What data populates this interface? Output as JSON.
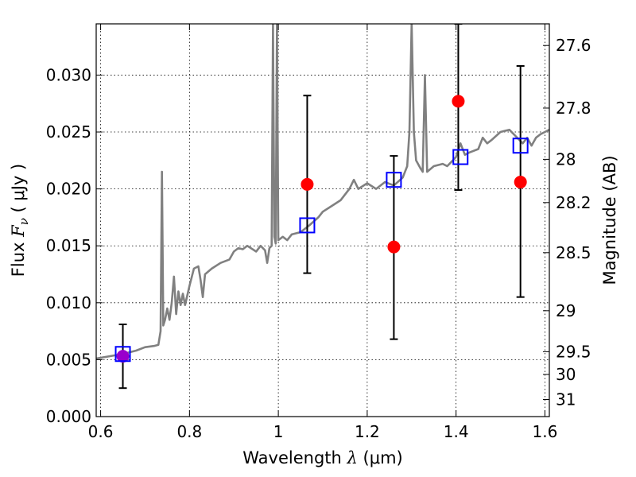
{
  "chart_data": {
    "type": "scatter",
    "xlabel_prefix": "Wavelength",
    "xlabel_symbol": "λ",
    "xlabel_unit": "(μm)",
    "ylabel_prefix": "Flux",
    "ylabel_symbol": "F",
    "ylabel_sub": "ν",
    "ylabel_unit": "( μJy )",
    "y2label": "Magnitude (AB)",
    "xlim": [
      0.59,
      1.61
    ],
    "ylim": [
      0.0,
      0.0345
    ],
    "grid": true,
    "x_ticks": [
      {
        "value": 0.6,
        "label": "0.6"
      },
      {
        "value": 0.8,
        "label": "0.8"
      },
      {
        "value": 1.0,
        "label": "1"
      },
      {
        "value": 1.2,
        "label": "1.2"
      },
      {
        "value": 1.4,
        "label": "1.4"
      },
      {
        "value": 1.6,
        "label": "1.6"
      }
    ],
    "y_ticks": [
      {
        "value": 0.0,
        "label": "0.000"
      },
      {
        "value": 0.005,
        "label": "0.005"
      },
      {
        "value": 0.01,
        "label": "0.010"
      },
      {
        "value": 0.015,
        "label": "0.015"
      },
      {
        "value": 0.02,
        "label": "0.020"
      },
      {
        "value": 0.025,
        "label": "0.025"
      },
      {
        "value": 0.03,
        "label": "0.030"
      }
    ],
    "y2_ticks": [
      {
        "flux": 0.0326,
        "label": "27.6"
      },
      {
        "flux": 0.0271,
        "label": "27.8"
      },
      {
        "flux": 0.0226,
        "label": "28"
      },
      {
        "flux": 0.0188,
        "label": "28.2"
      },
      {
        "flux": 0.0144,
        "label": "28.5"
      },
      {
        "flux": 0.0093,
        "label": "29"
      },
      {
        "flux": 0.0057,
        "label": "29.5"
      },
      {
        "flux": 0.0037,
        "label": "30"
      },
      {
        "flux": 0.0015,
        "label": "31"
      }
    ],
    "sed_model": {
      "color": "#808080",
      "points": [
        [
          0.59,
          0.0051
        ],
        [
          0.62,
          0.0053
        ],
        [
          0.65,
          0.0055
        ],
        [
          0.68,
          0.0058
        ],
        [
          0.7,
          0.0061
        ],
        [
          0.72,
          0.0062
        ],
        [
          0.73,
          0.0063
        ],
        [
          0.735,
          0.0075
        ],
        [
          0.738,
          0.0215
        ],
        [
          0.741,
          0.008
        ],
        [
          0.745,
          0.0085
        ],
        [
          0.75,
          0.0095
        ],
        [
          0.755,
          0.0085
        ],
        [
          0.76,
          0.01
        ],
        [
          0.765,
          0.0123
        ],
        [
          0.77,
          0.009
        ],
        [
          0.775,
          0.011
        ],
        [
          0.78,
          0.0098
        ],
        [
          0.785,
          0.0108
        ],
        [
          0.79,
          0.0098
        ],
        [
          0.8,
          0.0115
        ],
        [
          0.81,
          0.013
        ],
        [
          0.82,
          0.0132
        ],
        [
          0.825,
          0.012
        ],
        [
          0.83,
          0.0105
        ],
        [
          0.835,
          0.0125
        ],
        [
          0.85,
          0.013
        ],
        [
          0.87,
          0.0135
        ],
        [
          0.89,
          0.0138
        ],
        [
          0.9,
          0.0145
        ],
        [
          0.91,
          0.0148
        ],
        [
          0.92,
          0.0147
        ],
        [
          0.93,
          0.015
        ],
        [
          0.95,
          0.0145
        ],
        [
          0.96,
          0.015
        ],
        [
          0.97,
          0.0146
        ],
        [
          0.975,
          0.0135
        ],
        [
          0.98,
          0.0148
        ],
        [
          0.985,
          0.015
        ],
        [
          0.988,
          0.0345
        ],
        [
          0.991,
          0.0158
        ],
        [
          0.994,
          0.0152
        ],
        [
          0.997,
          0.0345
        ],
        [
          1.0,
          0.0155
        ],
        [
          1.01,
          0.0158
        ],
        [
          1.02,
          0.0155
        ],
        [
          1.03,
          0.016
        ],
        [
          1.05,
          0.0162
        ],
        [
          1.07,
          0.0168
        ],
        [
          1.09,
          0.0175
        ],
        [
          1.1,
          0.018
        ],
        [
          1.12,
          0.0185
        ],
        [
          1.14,
          0.019
        ],
        [
          1.15,
          0.0195
        ],
        [
          1.16,
          0.02
        ],
        [
          1.17,
          0.0208
        ],
        [
          1.18,
          0.02
        ],
        [
          1.2,
          0.0205
        ],
        [
          1.22,
          0.02
        ],
        [
          1.24,
          0.0206
        ],
        [
          1.26,
          0.0203
        ],
        [
          1.28,
          0.021
        ],
        [
          1.29,
          0.022
        ],
        [
          1.295,
          0.025
        ],
        [
          1.3,
          0.0345
        ],
        [
          1.305,
          0.025
        ],
        [
          1.31,
          0.0225
        ],
        [
          1.32,
          0.0218
        ],
        [
          1.325,
          0.0215
        ],
        [
          1.33,
          0.03
        ],
        [
          1.335,
          0.0215
        ],
        [
          1.35,
          0.022
        ],
        [
          1.37,
          0.0222
        ],
        [
          1.38,
          0.022
        ],
        [
          1.39,
          0.0224
        ],
        [
          1.4,
          0.0228
        ],
        [
          1.41,
          0.024
        ],
        [
          1.42,
          0.023
        ],
        [
          1.43,
          0.0232
        ],
        [
          1.45,
          0.0235
        ],
        [
          1.46,
          0.0245
        ],
        [
          1.47,
          0.024
        ],
        [
          1.48,
          0.0243
        ],
        [
          1.5,
          0.025
        ],
        [
          1.52,
          0.0252
        ],
        [
          1.53,
          0.0248
        ],
        [
          1.55,
          0.024
        ],
        [
          1.56,
          0.0245
        ],
        [
          1.57,
          0.0238
        ],
        [
          1.58,
          0.0245
        ],
        [
          1.59,
          0.0248
        ],
        [
          1.61,
          0.0252
        ]
      ]
    },
    "series": [
      {
        "marker": "square",
        "color": "#0000ff",
        "points": [
          {
            "x": 0.65,
            "y": 0.0055
          },
          {
            "x": 1.065,
            "y": 0.0168
          },
          {
            "x": 1.26,
            "y": 0.0208
          },
          {
            "x": 1.41,
            "y": 0.0228
          },
          {
            "x": 1.545,
            "y": 0.0238
          }
        ]
      },
      {
        "marker": "circle",
        "color": "#ff0000",
        "points": [
          {
            "x": 0.65,
            "y": 0.0053,
            "yerr_low": 0.0025,
            "yerr_high": 0.0081,
            "color": "#9900cc"
          },
          {
            "x": 1.065,
            "y": 0.0204,
            "yerr_low": 0.0126,
            "yerr_high": 0.0282
          },
          {
            "x": 1.26,
            "y": 0.0149,
            "yerr_low": 0.0068,
            "yerr_high": 0.0229
          },
          {
            "x": 1.405,
            "y": 0.0277,
            "yerr_low": 0.0199,
            "yerr_high": 0.0345
          },
          {
            "x": 1.545,
            "y": 0.0206,
            "yerr_low": 0.0105,
            "yerr_high": 0.0308
          }
        ]
      }
    ]
  }
}
